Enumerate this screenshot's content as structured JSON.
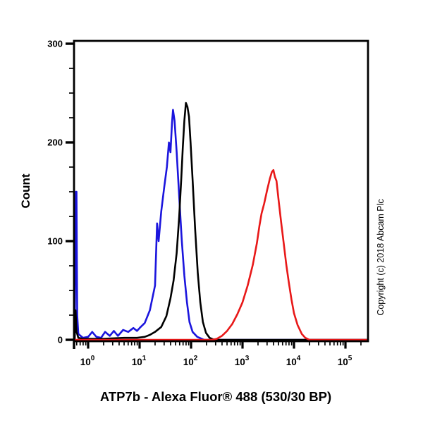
{
  "figure": {
    "title": "ATP7b - Alexa Fluor® 488 (530/30 BP)",
    "y_axis_label": "Count",
    "copyright": "Copyright (c) 2018 Abcam Plc"
  },
  "chart_data": {
    "type": "line",
    "subtype": "flow-cytometry-histogram-overlay",
    "title": "ATP7b - Alexa Fluor® 488 (530/30 BP)",
    "ylabel": "Count",
    "x_scale": "log10",
    "x_tick_exponents": [
      0,
      1,
      2,
      3,
      4,
      5
    ],
    "x_tick_labels": [
      "10^0",
      "10^1",
      "10^2",
      "10^3",
      "10^4",
      "10^5"
    ],
    "x_range_log10": [
      -0.274,
      5.438
    ],
    "y_major_ticks": [
      0,
      100,
      200,
      300
    ],
    "y_minor_step": 25,
    "ylim": [
      0,
      303
    ],
    "grid": false,
    "legend": false,
    "axis_color": "#000000",
    "series": [
      {
        "name": "blue-curve",
        "color": "#1b15dd",
        "peak": {
          "x": 44,
          "count": 233
        },
        "edge_spike_count": 150,
        "points": [
          [
            -0.262,
            0
          ],
          [
            -0.248,
            75
          ],
          [
            -0.238,
            150
          ],
          [
            -0.226,
            150
          ],
          [
            -0.212,
            25
          ],
          [
            -0.19,
            6
          ],
          [
            -0.1,
            2
          ],
          [
            0.0,
            3
          ],
          [
            0.08,
            8
          ],
          [
            0.16,
            3
          ],
          [
            0.25,
            2
          ],
          [
            0.33,
            8
          ],
          [
            0.42,
            4
          ],
          [
            0.5,
            9
          ],
          [
            0.58,
            4
          ],
          [
            0.68,
            10
          ],
          [
            0.78,
            8
          ],
          [
            0.88,
            12
          ],
          [
            0.95,
            9
          ],
          [
            1.02,
            13
          ],
          [
            1.1,
            17
          ],
          [
            1.2,
            30
          ],
          [
            1.3,
            55
          ],
          [
            1.34,
            118
          ],
          [
            1.37,
            100
          ],
          [
            1.42,
            130
          ],
          [
            1.48,
            155
          ],
          [
            1.53,
            175
          ],
          [
            1.57,
            200
          ],
          [
            1.6,
            190
          ],
          [
            1.63,
            220
          ],
          [
            1.65,
            233
          ],
          [
            1.68,
            222
          ],
          [
            1.72,
            190
          ],
          [
            1.77,
            145
          ],
          [
            1.82,
            100
          ],
          [
            1.87,
            65
          ],
          [
            1.92,
            38
          ],
          [
            1.97,
            18
          ],
          [
            2.03,
            8
          ],
          [
            2.12,
            3
          ],
          [
            2.25,
            0
          ],
          [
            5.438,
            0
          ]
        ]
      },
      {
        "name": "black-curve",
        "color": "#000000",
        "peak": {
          "x": 79,
          "count": 240
        },
        "edge_spike_count": 30,
        "points": [
          [
            -0.262,
            0
          ],
          [
            -0.245,
            30
          ],
          [
            -0.225,
            8
          ],
          [
            -0.19,
            2
          ],
          [
            -0.1,
            1
          ],
          [
            0.3,
            1
          ],
          [
            0.7,
            2
          ],
          [
            0.95,
            2
          ],
          [
            1.1,
            3
          ],
          [
            1.2,
            5
          ],
          [
            1.3,
            8
          ],
          [
            1.42,
            13
          ],
          [
            1.52,
            24
          ],
          [
            1.6,
            42
          ],
          [
            1.66,
            60
          ],
          [
            1.72,
            88
          ],
          [
            1.77,
            125
          ],
          [
            1.81,
            163
          ],
          [
            1.84,
            195
          ],
          [
            1.87,
            222
          ],
          [
            1.9,
            240
          ],
          [
            1.93,
            236
          ],
          [
            1.96,
            226
          ],
          [
            1.99,
            200
          ],
          [
            2.03,
            162
          ],
          [
            2.08,
            112
          ],
          [
            2.13,
            68
          ],
          [
            2.18,
            38
          ],
          [
            2.23,
            18
          ],
          [
            2.29,
            7
          ],
          [
            2.36,
            2
          ],
          [
            2.45,
            0
          ],
          [
            5.438,
            0
          ]
        ]
      },
      {
        "name": "red-curve",
        "color": "#e81818",
        "peak": {
          "x": 3900,
          "count": 172
        },
        "points": [
          [
            -0.262,
            0
          ],
          [
            2.0,
            0
          ],
          [
            2.4,
            0
          ],
          [
            2.5,
            1
          ],
          [
            2.6,
            4
          ],
          [
            2.7,
            9
          ],
          [
            2.8,
            16
          ],
          [
            2.9,
            26
          ],
          [
            3.0,
            38
          ],
          [
            3.1,
            55
          ],
          [
            3.2,
            76
          ],
          [
            3.28,
            98
          ],
          [
            3.33,
            116
          ],
          [
            3.37,
            128
          ],
          [
            3.42,
            138
          ],
          [
            3.48,
            152
          ],
          [
            3.53,
            163
          ],
          [
            3.57,
            170
          ],
          [
            3.6,
            172
          ],
          [
            3.63,
            165
          ],
          [
            3.66,
            161
          ],
          [
            3.7,
            142
          ],
          [
            3.75,
            119
          ],
          [
            3.8,
            98
          ],
          [
            3.85,
            76
          ],
          [
            3.9,
            58
          ],
          [
            3.95,
            41
          ],
          [
            4.0,
            27
          ],
          [
            4.07,
            15
          ],
          [
            4.15,
            6
          ],
          [
            4.22,
            2
          ],
          [
            4.3,
            0
          ],
          [
            5.438,
            0
          ]
        ]
      }
    ]
  }
}
